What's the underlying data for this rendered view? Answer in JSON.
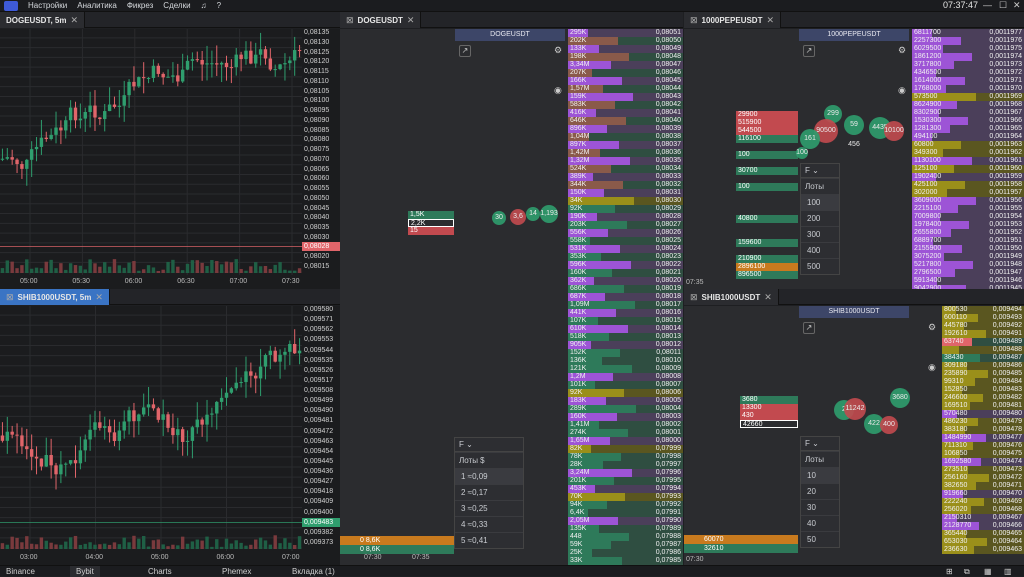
{
  "app": {
    "menu": [
      "Настройки",
      "Аналитика",
      "Фикрез",
      "Сделки"
    ],
    "time": "07:37:47",
    "help_icon": "?"
  },
  "colors": {
    "up": "#2f9e6e",
    "down": "#e0656a",
    "accent": "#3a74c4",
    "purple": "#9d54d6",
    "olive": "#9a8f1a",
    "brown": "#8a5a4a",
    "green_dom": "#2e7a5a",
    "orange": "#c87a1e"
  },
  "charts": {
    "doge": {
      "tab": "DOGEUSDT, 5m",
      "price_label": "0,08028",
      "yticks": [
        "0,08135",
        "0,08130",
        "0,08125",
        "0,08120",
        "0,08115",
        "0,08110",
        "0,08105",
        "0,08100",
        "0,08095",
        "0,08090",
        "0,08085",
        "0,08080",
        "0,08075",
        "0,08070",
        "0,08065",
        "0,08060",
        "0,08055",
        "0,08050",
        "0,08045",
        "0,08040",
        "0,08035",
        "0,08030",
        "0,08025",
        "0,08020",
        "0,08015"
      ],
      "xticks": [
        "05:00",
        "05:30",
        "06:00",
        "06:30",
        "07:00",
        "07:30"
      ]
    },
    "shib": {
      "tab": "SHIB1000USDT, 5m",
      "price_label": "0,009483",
      "yticks": [
        "0,009580",
        "0,009571",
        "0,009562",
        "0,009553",
        "0,009544",
        "0,009535",
        "0,009526",
        "0,009517",
        "0,009508",
        "0,009499",
        "0,009490",
        "0,009481",
        "0,009472",
        "0,009463",
        "0,009454",
        "0,009445",
        "0,009436",
        "0,009427",
        "0,009418",
        "0,009409",
        "0,009400",
        "0,009391",
        "0,009382",
        "0,009373"
      ],
      "xticks": [
        "03:00",
        "04:00",
        "05:00",
        "06:00",
        "07:00"
      ]
    }
  },
  "dom": {
    "doge": {
      "tab": "DOGEUSDT",
      "symbol": "DOGEUSDT",
      "footer": [
        "07:30",
        "07:35"
      ],
      "left_levels": [
        {
          "v": "1,5K",
          "c": "green"
        },
        {
          "v": "2,2K",
          "c": "outline"
        },
        {
          "v": "15",
          "c": "red"
        }
      ],
      "bubbles": [
        "30",
        "3,6",
        "14",
        "1,193"
      ],
      "bottom": [
        {
          "a": "0",
          "b": "8,6K"
        },
        {
          "a": "0",
          "b": "8,6K"
        }
      ],
      "filter": {
        "label": "F",
        "lots": "Лоты",
        "unit": "$",
        "rows": [
          {
            "n": "1",
            "v": "≈0,09"
          },
          {
            "n": "2",
            "v": "≈0,17"
          },
          {
            "n": "3",
            "v": "≈0,25"
          },
          {
            "n": "4",
            "v": "≈0,33"
          },
          {
            "n": "5",
            "v": "≈0,41"
          }
        ]
      },
      "book": [
        [
          "295K",
          "0,08051",
          "p"
        ],
        [
          "202K",
          "0,08050",
          "b"
        ],
        [
          "133K",
          "0,08049",
          "p"
        ],
        [
          "198K",
          "0,08048",
          "b"
        ],
        [
          "3,34M",
          "0,08047",
          "p"
        ],
        [
          "207K",
          "0,08046",
          "b"
        ],
        [
          "166K",
          "0,08045",
          "p"
        ],
        [
          "1,57M",
          "0,08044",
          "b"
        ],
        [
          "159K",
          "0,08043",
          "p"
        ],
        [
          "583K",
          "0,08042",
          "b"
        ],
        [
          "416K",
          "0,08041",
          "p"
        ],
        [
          "646K",
          "0,08040",
          "b"
        ],
        [
          "896K",
          "0,08039",
          "p"
        ],
        [
          "1,04M",
          "0,08038",
          "b"
        ],
        [
          "897K",
          "0,08037",
          "p"
        ],
        [
          "1,42M",
          "0,08036",
          "b"
        ],
        [
          "1,32M",
          "0,08035",
          "p"
        ],
        [
          "524K",
          "0,08034",
          "b"
        ],
        [
          "389K",
          "0,08033",
          "p"
        ],
        [
          "344K",
          "0,08032",
          "b"
        ],
        [
          "150K",
          "0,08031",
          "p"
        ],
        [
          "34K",
          "0,08030",
          "o"
        ],
        [
          "92K",
          "0,08029",
          "g"
        ],
        [
          "190K",
          "0,08028",
          "p"
        ],
        [
          "203K",
          "0,08027",
          "g"
        ],
        [
          "556K",
          "0,08026",
          "p"
        ],
        [
          "558K",
          "0,08025",
          "g"
        ],
        [
          "531K",
          "0,08024",
          "p"
        ],
        [
          "353K",
          "0,08023",
          "g"
        ],
        [
          "596K",
          "0,08022",
          "p"
        ],
        [
          "160K",
          "0,08021",
          "g"
        ],
        [
          "362K",
          "0,08020",
          "p"
        ],
        [
          "686K",
          "0,08019",
          "g"
        ],
        [
          "687K",
          "0,08018",
          "p"
        ],
        [
          "1,09M",
          "0,08017",
          "g"
        ],
        [
          "441K",
          "0,08016",
          "p"
        ],
        [
          "107K",
          "0,08015",
          "g"
        ],
        [
          "610K",
          "0,08014",
          "p"
        ],
        [
          "518K",
          "0,08013",
          "g"
        ],
        [
          "905K",
          "0,08012",
          "p"
        ],
        [
          "152K",
          "0,08011",
          "g"
        ],
        [
          "136K",
          "0,08010",
          "g"
        ],
        [
          "121K",
          "0,08009",
          "g"
        ],
        [
          "1,2M",
          "0,08008",
          "p"
        ],
        [
          "101K",
          "0,08007",
          "g"
        ],
        [
          "92K",
          "0,08006",
          "o"
        ],
        [
          "183K",
          "0,08005",
          "p"
        ],
        [
          "289K",
          "0,08004",
          "g"
        ],
        [
          "160K",
          "0,08003",
          "p"
        ],
        [
          "1,41M",
          "0,08002",
          "g"
        ],
        [
          "274K",
          "0,08001",
          "g"
        ],
        [
          "1,65M",
          "0,08000",
          "p"
        ],
        [
          "82K",
          "0,07999",
          "o"
        ],
        [
          "78K",
          "0,07998",
          "g"
        ],
        [
          "28K",
          "0,07997",
          "g"
        ],
        [
          "3,24M",
          "0,07996",
          "p"
        ],
        [
          "201K",
          "0,07995",
          "g"
        ],
        [
          "453K",
          "0,07994",
          "p"
        ],
        [
          "70K",
          "0,07993",
          "o"
        ],
        [
          "94K",
          "0,07992",
          "g"
        ],
        [
          "6,4K",
          "0,07991",
          "g"
        ],
        [
          "2,05M",
          "0,07990",
          "p"
        ],
        [
          "135K",
          "0,07989",
          "g"
        ],
        [
          "448",
          "0,07988",
          "g"
        ],
        [
          "59K",
          "0,07987",
          "g"
        ],
        [
          "25K",
          "0,07986",
          "g"
        ],
        [
          "33K",
          "0,07985",
          "g"
        ]
      ]
    },
    "pepe": {
      "tab": "1000PEPEUSDT",
      "symbol": "1000PEPEUSDT",
      "footer": [
        "07:35"
      ],
      "left_levels": [
        {
          "v": "29900",
          "c": "red"
        },
        {
          "v": "515900",
          "c": "red"
        },
        {
          "v": "544500",
          "c": "red"
        },
        {
          "v": "116100",
          "c": "green"
        },
        {
          "v": "100",
          "c": "green"
        },
        {
          "v": "30700",
          "c": "green"
        },
        {
          "v": "100",
          "c": "green"
        },
        {
          "v": "40800",
          "c": "green"
        },
        {
          "v": "159600",
          "c": "green"
        },
        {
          "v": "210900",
          "c": "green"
        },
        {
          "v": "2896100",
          "c": "orange"
        },
        {
          "v": "896500",
          "c": "green"
        }
      ],
      "bubbles": [
        "299",
        "90500",
        "59 456",
        "4435",
        "10100",
        "161",
        "100"
      ],
      "filter": {
        "label": "F",
        "lots": "Лоты",
        "rows": [
          {
            "n": "100"
          },
          {
            "n": "200"
          },
          {
            "n": "300"
          },
          {
            "n": "400"
          },
          {
            "n": "500"
          }
        ]
      },
      "book": [
        [
          "6811700",
          "0,0011977",
          "p"
        ],
        [
          "2257300",
          "0,0011976",
          "p"
        ],
        [
          "6029500",
          "0,0011975",
          "p"
        ],
        [
          "1861200",
          "0,0011974",
          "p"
        ],
        [
          "3717800",
          "0,0011973",
          "p"
        ],
        [
          "4346500",
          "0,0011972",
          "p"
        ],
        [
          "1614000",
          "0,0011971",
          "p"
        ],
        [
          "1768000",
          "0,0011970",
          "p"
        ],
        [
          "573500",
          "0,0011969",
          "o"
        ],
        [
          "8624900",
          "0,0011968",
          "p"
        ],
        [
          "8302900",
          "0,0011967",
          "p"
        ],
        [
          "1530300",
          "0,0011966",
          "p"
        ],
        [
          "1281300",
          "0,0011965",
          "p"
        ],
        [
          "494100",
          "0,0011964",
          "p"
        ],
        [
          "60800",
          "0,0011963",
          "o"
        ],
        [
          "349300",
          "0,0011962",
          "o"
        ],
        [
          "1130100",
          "0,0011961",
          "p"
        ],
        [
          "125100",
          "0,0011960",
          "o"
        ],
        [
          "1902400",
          "0,0011959",
          "p"
        ],
        [
          "425100",
          "0,0011958",
          "o"
        ],
        [
          "302000",
          "0,0011957",
          "o"
        ],
        [
          "3609000",
          "0,0011956",
          "p"
        ],
        [
          "2215100",
          "0,0011955",
          "p"
        ],
        [
          "7009800",
          "0,0011954",
          "p"
        ],
        [
          "1978400",
          "0,0011953",
          "p"
        ],
        [
          "2655800",
          "0,0011952",
          "p"
        ],
        [
          "6889700",
          "0,0011951",
          "p"
        ],
        [
          "2155900",
          "0,0011950",
          "p"
        ],
        [
          "3075200",
          "0,0011949",
          "p"
        ],
        [
          "5217800",
          "0,0011948",
          "p"
        ],
        [
          "2796500",
          "0,0011947",
          "p"
        ],
        [
          "5913400",
          "0,0011946",
          "p"
        ],
        [
          "9042900",
          "0,0011945",
          "p"
        ]
      ]
    },
    "shib": {
      "tab": "SHIB1000USDT",
      "symbol": "SHIB1000USDT",
      "footer": [
        "07:30"
      ],
      "left_levels": [
        {
          "v": "3680",
          "c": "green"
        },
        {
          "v": "13300",
          "c": "red"
        },
        {
          "v": "430",
          "c": "red"
        },
        {
          "v": "42660",
          "c": "outline"
        }
      ],
      "bubbles": [
        "2",
        "11242",
        "3680",
        "422",
        "400"
      ],
      "bottom": [
        {
          "a": "60070"
        },
        {
          "a": "32610"
        }
      ],
      "filter": {
        "label": "F",
        "lots": "Лоты",
        "rows": [
          {
            "n": "10"
          },
          {
            "n": "20"
          },
          {
            "n": "30"
          },
          {
            "n": "40"
          },
          {
            "n": "50"
          }
        ]
      },
      "book": [
        [
          "800530",
          "0,009494",
          "o"
        ],
        [
          "600110",
          "0,009493",
          "o"
        ],
        [
          "445780",
          "0,009492",
          "o"
        ],
        [
          "192610",
          "0,009491",
          "o"
        ],
        [
          "63740",
          "0,009489",
          "r"
        ],
        [
          "",
          "0,009488",
          "o"
        ],
        [
          "38430",
          "0,009487",
          "g"
        ],
        [
          "309180",
          "0,009486",
          "o"
        ],
        [
          "235890",
          "0,009485",
          "o"
        ],
        [
          "99310",
          "0,009484",
          "o"
        ],
        [
          "152850",
          "0,009483",
          "o"
        ],
        [
          "246600",
          "0,009482",
          "o"
        ],
        [
          "169510",
          "0,009481",
          "o"
        ],
        [
          "570480",
          "0,009480",
          "p"
        ],
        [
          "486230",
          "0,009479",
          "o"
        ],
        [
          "383180",
          "0,009478",
          "o"
        ],
        [
          "1484990",
          "0,009477",
          "p"
        ],
        [
          "711310",
          "0,009476",
          "o"
        ],
        [
          "106850",
          "0,009475",
          "o"
        ],
        [
          "1692580",
          "0,009474",
          "p"
        ],
        [
          "273510",
          "0,009473",
          "o"
        ],
        [
          "256160",
          "0,009472",
          "o"
        ],
        [
          "382650",
          "0,009471",
          "o"
        ],
        [
          "919660",
          "0,009470",
          "p"
        ],
        [
          "222240",
          "0,009469",
          "o"
        ],
        [
          "256020",
          "0,009468",
          "o"
        ],
        [
          "2150310",
          "0,009467",
          "p"
        ],
        [
          "2128770",
          "0,009466",
          "p"
        ],
        [
          "365440",
          "0,009465",
          "o"
        ],
        [
          "653030",
          "0,009464",
          "o"
        ],
        [
          "236630",
          "0,009463",
          "o"
        ]
      ]
    }
  },
  "bottom_tabs": [
    "Binance",
    "Bybit",
    "Charts",
    "Phemex",
    "Вкладка (1)"
  ]
}
